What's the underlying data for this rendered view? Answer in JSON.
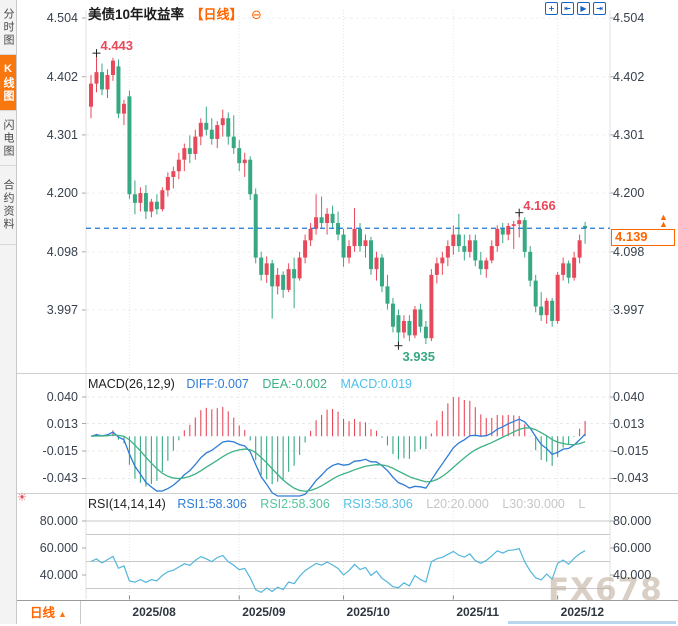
{
  "app": {
    "watermark": "FX678"
  },
  "icons": {
    "up_arrow": "▲",
    "collapse": "⊖",
    "sun": "☀"
  },
  "sidebar": {
    "items": [
      {
        "label": "分时图",
        "active": false
      },
      {
        "label": "K线图",
        "active": true
      },
      {
        "label": "闪电图",
        "active": false
      },
      {
        "label": "合约资料",
        "active": false
      }
    ]
  },
  "header": {
    "title": "美债10年收益率",
    "period_tag": "【日线】"
  },
  "toolbar": {
    "buttons": [
      {
        "name": "crosshair",
        "glyph": "+"
      },
      {
        "name": "range-zoom",
        "glyph": "⇤"
      },
      {
        "name": "auto-scroll",
        "glyph": "▶"
      },
      {
        "name": "goto-latest",
        "glyph": "⇥"
      }
    ]
  },
  "macd_panel": {
    "title": "MACD(26,12,9)",
    "diff_label": "DIFF:0.007",
    "dea_label": "DEA:-0.002",
    "macd_label": "MACD:0.019"
  },
  "rsi_panel": {
    "title": "RSI(14,14,14)",
    "rsi1_label": "RSI1:58.306",
    "rsi2_label": "RSI2:58.306",
    "rsi3_label": "RSI3:58.306",
    "l20_label": "L20:20.000",
    "l30_label": "L30:30.000",
    "l_extra": "L"
  },
  "bottom_bar": {
    "period_label": "日线"
  },
  "colors": {
    "up": "#e8495a",
    "down": "#36a883",
    "accent": "#ff6600",
    "dashed_line": "#1f7ad4",
    "diff_line": "#2e7cd6",
    "dea_line": "#3db284",
    "rsi_line": "#52b6dc",
    "grid": "#ececec",
    "cross": "#222222"
  },
  "chart_data": {
    "type": "candlestick_with_indicators",
    "symbol": "美债10年收益率",
    "period": "日线",
    "last_price": 4.139,
    "last_price_label": "4.139",
    "price_axis": {
      "values": [
        4.504,
        4.402,
        4.301,
        4.2,
        4.098,
        3.997
      ],
      "labels": [
        "4.504",
        "4.402",
        "4.301",
        "4.200",
        "4.098",
        "3.997"
      ]
    },
    "x_axis": {
      "month_labels": [
        "2025/08",
        "2025/09",
        "2025/10",
        "2025/11",
        "2025/12"
      ],
      "month_start_indices": [
        7,
        27,
        46,
        66,
        85
      ]
    },
    "annotations": [
      {
        "text": "4.443",
        "candle_index": 1,
        "value": 4.443,
        "kind": "high"
      },
      {
        "text": "4.166",
        "candle_index": 78,
        "value": 4.166,
        "kind": "high"
      },
      {
        "text": "3.935",
        "candle_index": 56,
        "value": 3.935,
        "kind": "low"
      }
    ],
    "candles": [
      [
        4.35,
        4.405,
        4.33,
        4.39
      ],
      [
        4.39,
        4.443,
        4.375,
        4.41
      ],
      [
        4.41,
        4.425,
        4.37,
        4.38
      ],
      [
        4.38,
        4.415,
        4.365,
        4.405
      ],
      [
        4.405,
        4.435,
        4.395,
        4.43
      ],
      [
        4.42,
        4.432,
        4.33,
        4.338
      ],
      [
        4.338,
        4.362,
        4.318,
        4.355
      ],
      [
        4.368,
        4.378,
        4.19,
        4.198
      ],
      [
        4.198,
        4.222,
        4.163,
        4.183
      ],
      [
        4.183,
        4.21,
        4.168,
        4.2
      ],
      [
        4.2,
        4.214,
        4.155,
        4.168
      ],
      [
        4.168,
        4.19,
        4.158,
        4.185
      ],
      [
        4.185,
        4.198,
        4.163,
        4.172
      ],
      [
        4.172,
        4.21,
        4.168,
        4.205
      ],
      [
        4.205,
        4.236,
        4.194,
        4.228
      ],
      [
        4.228,
        4.246,
        4.208,
        4.238
      ],
      [
        4.238,
        4.27,
        4.224,
        4.258
      ],
      [
        4.258,
        4.286,
        4.238,
        4.278
      ],
      [
        4.278,
        4.3,
        4.252,
        4.268
      ],
      [
        4.268,
        4.31,
        4.258,
        4.298
      ],
      [
        4.298,
        4.33,
        4.283,
        4.322
      ],
      [
        4.322,
        4.35,
        4.3,
        4.31
      ],
      [
        4.31,
        4.33,
        4.284,
        4.294
      ],
      [
        4.294,
        4.325,
        4.278,
        4.318
      ],
      [
        4.318,
        4.345,
        4.298,
        4.33
      ],
      [
        4.33,
        4.34,
        4.284,
        4.298
      ],
      [
        4.298,
        4.335,
        4.268,
        4.278
      ],
      [
        4.278,
        4.292,
        4.238,
        4.252
      ],
      [
        4.252,
        4.27,
        4.228,
        4.258
      ],
      [
        4.258,
        4.264,
        4.188,
        4.198
      ],
      [
        4.198,
        4.208,
        4.078,
        4.088
      ],
      [
        4.088,
        4.098,
        4.048,
        4.058
      ],
      [
        4.058,
        4.09,
        4.044,
        4.078
      ],
      [
        4.078,
        4.084,
        3.982,
        4.038
      ],
      [
        4.038,
        4.07,
        4.024,
        4.058
      ],
      [
        4.058,
        4.064,
        4.018,
        4.032
      ],
      [
        4.032,
        4.078,
        4.028,
        4.068
      ],
      [
        4.068,
        4.088,
        4.0,
        4.052
      ],
      [
        4.052,
        4.098,
        4.048,
        4.088
      ],
      [
        4.088,
        4.128,
        4.078,
        4.118
      ],
      [
        4.118,
        4.148,
        4.108,
        4.138
      ],
      [
        4.138,
        4.198,
        4.128,
        4.158
      ],
      [
        4.158,
        4.194,
        4.138,
        4.148
      ],
      [
        4.148,
        4.174,
        4.128,
        4.164
      ],
      [
        4.164,
        4.178,
        4.138,
        4.148
      ],
      [
        4.148,
        4.168,
        4.118,
        4.128
      ],
      [
        4.128,
        4.138,
        4.072,
        4.088
      ],
      [
        4.088,
        4.118,
        4.078,
        4.108
      ],
      [
        4.108,
        4.174,
        4.098,
        4.138
      ],
      [
        4.138,
        4.148,
        4.098,
        4.108
      ],
      [
        4.108,
        4.128,
        4.088,
        4.118
      ],
      [
        4.118,
        4.124,
        4.058,
        4.068
      ],
      [
        4.068,
        4.098,
        4.048,
        4.088
      ],
      [
        4.088,
        4.094,
        4.028,
        4.038
      ],
      [
        4.038,
        4.058,
        3.998,
        4.008
      ],
      [
        4.008,
        4.018,
        3.958,
        3.968
      ],
      [
        3.988,
        3.998,
        3.935,
        3.958
      ],
      [
        3.958,
        3.988,
        3.948,
        3.978
      ],
      [
        3.978,
        3.988,
        3.943,
        3.953
      ],
      [
        3.953,
        4.004,
        3.948,
        3.998
      ],
      [
        3.998,
        4.008,
        3.958,
        3.968
      ],
      [
        3.968,
        3.978,
        3.938,
        3.948
      ],
      [
        3.948,
        4.068,
        3.943,
        4.058
      ],
      [
        4.058,
        4.088,
        4.043,
        4.078
      ],
      [
        4.078,
        4.098,
        4.058,
        4.088
      ],
      [
        4.088,
        4.118,
        4.073,
        4.108
      ],
      [
        4.108,
        4.144,
        4.093,
        4.128
      ],
      [
        4.128,
        4.164,
        4.098,
        4.108
      ],
      [
        4.108,
        4.128,
        4.083,
        4.098
      ],
      [
        4.098,
        4.128,
        4.088,
        4.118
      ],
      [
        4.118,
        4.128,
        4.073,
        4.083
      ],
      [
        4.083,
        4.098,
        4.058,
        4.068
      ],
      [
        4.068,
        4.088,
        4.053,
        4.083
      ],
      [
        4.083,
        4.118,
        4.078,
        4.108
      ],
      [
        4.108,
        4.144,
        4.098,
        4.138
      ],
      [
        4.138,
        4.148,
        4.113,
        4.128
      ],
      [
        4.128,
        4.148,
        4.118,
        4.143
      ],
      [
        4.143,
        4.152,
        4.103,
        4.146
      ],
      [
        4.146,
        4.166,
        4.123,
        4.153
      ],
      [
        4.153,
        4.158,
        4.088,
        4.098
      ],
      [
        4.098,
        4.108,
        4.038,
        4.048
      ],
      [
        4.048,
        4.058,
        3.993,
        4.003
      ],
      [
        4.003,
        4.028,
        3.978,
        3.988
      ],
      [
        3.988,
        4.018,
        3.973,
        4.013
      ],
      [
        4.013,
        4.018,
        3.968,
        3.978
      ],
      [
        3.978,
        4.063,
        3.973,
        4.058
      ],
      [
        4.058,
        4.088,
        4.048,
        4.078
      ],
      [
        4.078,
        4.083,
        4.043,
        4.053
      ],
      [
        4.053,
        4.098,
        4.048,
        4.088
      ],
      [
        4.088,
        4.128,
        4.078,
        4.118
      ],
      [
        4.143,
        4.15,
        4.112,
        4.139
      ]
    ],
    "macd": {
      "params": [
        26,
        12,
        9
      ],
      "diff": 0.007,
      "dea": -0.002,
      "macd": 0.019,
      "axis_values": [
        0.04,
        0.013,
        -0.015,
        -0.043
      ],
      "axis_labels": [
        "0.040",
        "0.013",
        "-0.015",
        "-0.043"
      ]
    },
    "rsi": {
      "params": [
        14,
        14,
        14
      ],
      "rsi1": 58.306,
      "rsi2": 58.306,
      "rsi3": 58.306,
      "l20": 20.0,
      "l30": 30.0,
      "axis_values": [
        80,
        60,
        40
      ],
      "axis_labels": [
        "80.000",
        "60.000",
        "40.000"
      ],
      "gridline_values": [
        80,
        70,
        50,
        30
      ]
    }
  }
}
